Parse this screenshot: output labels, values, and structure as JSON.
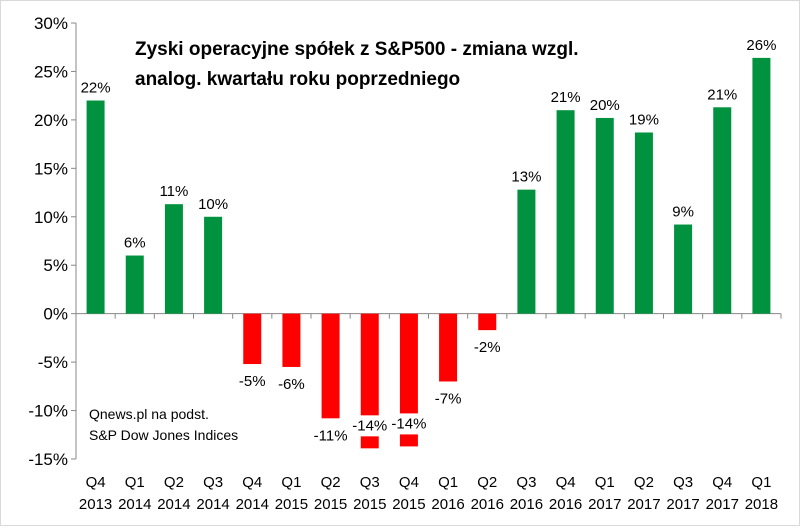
{
  "chart_data": {
    "type": "bar",
    "title_lines": [
      "Zyski operacyjne spółek z S&P500 - zmiana wzgl.",
      "analog. kwartału roku poprzedniego"
    ],
    "source_lines": [
      "Qnews.pl na podst.",
      "S&P Dow Jones Indices"
    ],
    "categories": [
      [
        "Q4",
        "2013"
      ],
      [
        "Q1",
        "2014"
      ],
      [
        "Q2",
        "2014"
      ],
      [
        "Q3",
        "2014"
      ],
      [
        "Q4",
        "2014"
      ],
      [
        "Q1",
        "2015"
      ],
      [
        "Q2",
        "2015"
      ],
      [
        "Q3",
        "2015"
      ],
      [
        "Q4",
        "2015"
      ],
      [
        "Q1",
        "2016"
      ],
      [
        "Q2",
        "2016"
      ],
      [
        "Q3",
        "2016"
      ],
      [
        "Q4",
        "2016"
      ],
      [
        "Q1",
        "2017"
      ],
      [
        "Q2",
        "2017"
      ],
      [
        "Q3",
        "2017"
      ],
      [
        "Q4",
        "2017"
      ],
      [
        "Q1",
        "2018"
      ]
    ],
    "values": [
      22.0,
      6.0,
      11.3,
      10.0,
      -5.2,
      -5.5,
      -10.8,
      -13.9,
      -13.7,
      -7.0,
      -1.7,
      12.8,
      21.0,
      20.2,
      18.7,
      9.2,
      21.3,
      26.4
    ],
    "labels": [
      "22%",
      "6%",
      "11%",
      "10%",
      "-5%",
      "-6%",
      "-11%",
      "-14%",
      "-14%",
      "-7%",
      "-2%",
      "13%",
      "21%",
      "20%",
      "19%",
      "9%",
      "21%",
      "26%"
    ],
    "yticks": [
      30,
      25,
      20,
      15,
      10,
      5,
      0,
      -5,
      -10,
      -15
    ],
    "ytick_labels": [
      "30%",
      "25%",
      "20%",
      "15%",
      "10%",
      "5%",
      "0%",
      "-5%",
      "-10%",
      "-15%"
    ],
    "ylim": [
      -15,
      30
    ],
    "xlabel": "",
    "ylabel": "",
    "grid": false,
    "colors": {
      "positive": "#00923f",
      "negative": "#ff0000"
    }
  }
}
